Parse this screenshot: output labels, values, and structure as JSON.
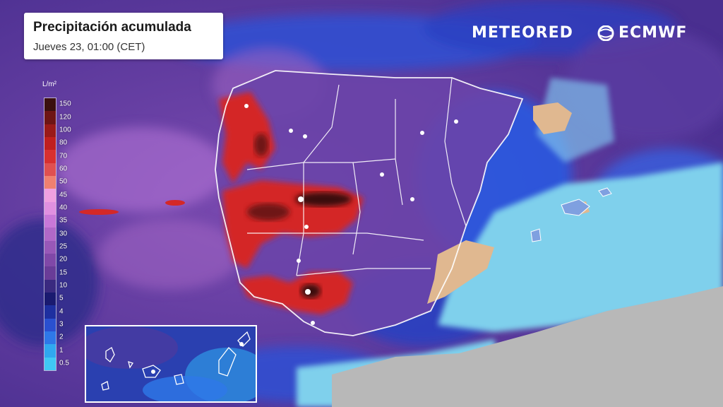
{
  "title": {
    "main": "Precipitación acumulada",
    "sub": "Jueves 23, 01:00 (CET)"
  },
  "brands": {
    "meteored": "METEORED",
    "ecmwf": "ECMWF"
  },
  "legend": {
    "unit": "L/m²",
    "levels": [
      {
        "label": "150",
        "color": "#3a1010"
      },
      {
        "label": "120",
        "color": "#6e1515"
      },
      {
        "label": "100",
        "color": "#9a1a1a"
      },
      {
        "label": "80",
        "color": "#c01f1f"
      },
      {
        "label": "70",
        "color": "#d83030"
      },
      {
        "label": "60",
        "color": "#e05050"
      },
      {
        "label": "50",
        "color": "#f08070"
      },
      {
        "label": "45",
        "color": "#f0a0e0"
      },
      {
        "label": "40",
        "color": "#e090e0"
      },
      {
        "label": "35",
        "color": "#c878d8"
      },
      {
        "label": "30",
        "color": "#b068c8"
      },
      {
        "label": "25",
        "color": "#9858b8"
      },
      {
        "label": "20",
        "color": "#8048a8"
      },
      {
        "label": "15",
        "color": "#6a3c98"
      },
      {
        "label": "10",
        "color": "#3a2a80"
      },
      {
        "label": "5",
        "color": "#1a1a70"
      },
      {
        "label": "4",
        "color": "#1e2fa0"
      },
      {
        "label": "3",
        "color": "#2a50d0"
      },
      {
        "label": "2",
        "color": "#2e78e8"
      },
      {
        "label": "1",
        "color": "#30a8f0"
      },
      {
        "label": "0.5",
        "color": "#40c8f5"
      }
    ]
  },
  "colors": {
    "sea_light": "#7fd0ec",
    "land_dry": "#e0b890",
    "africa": "#b8b8b8",
    "heavy_rain": "#d42828",
    "extreme_rain": "#3a1010",
    "moderate": "#6a3c98"
  }
}
